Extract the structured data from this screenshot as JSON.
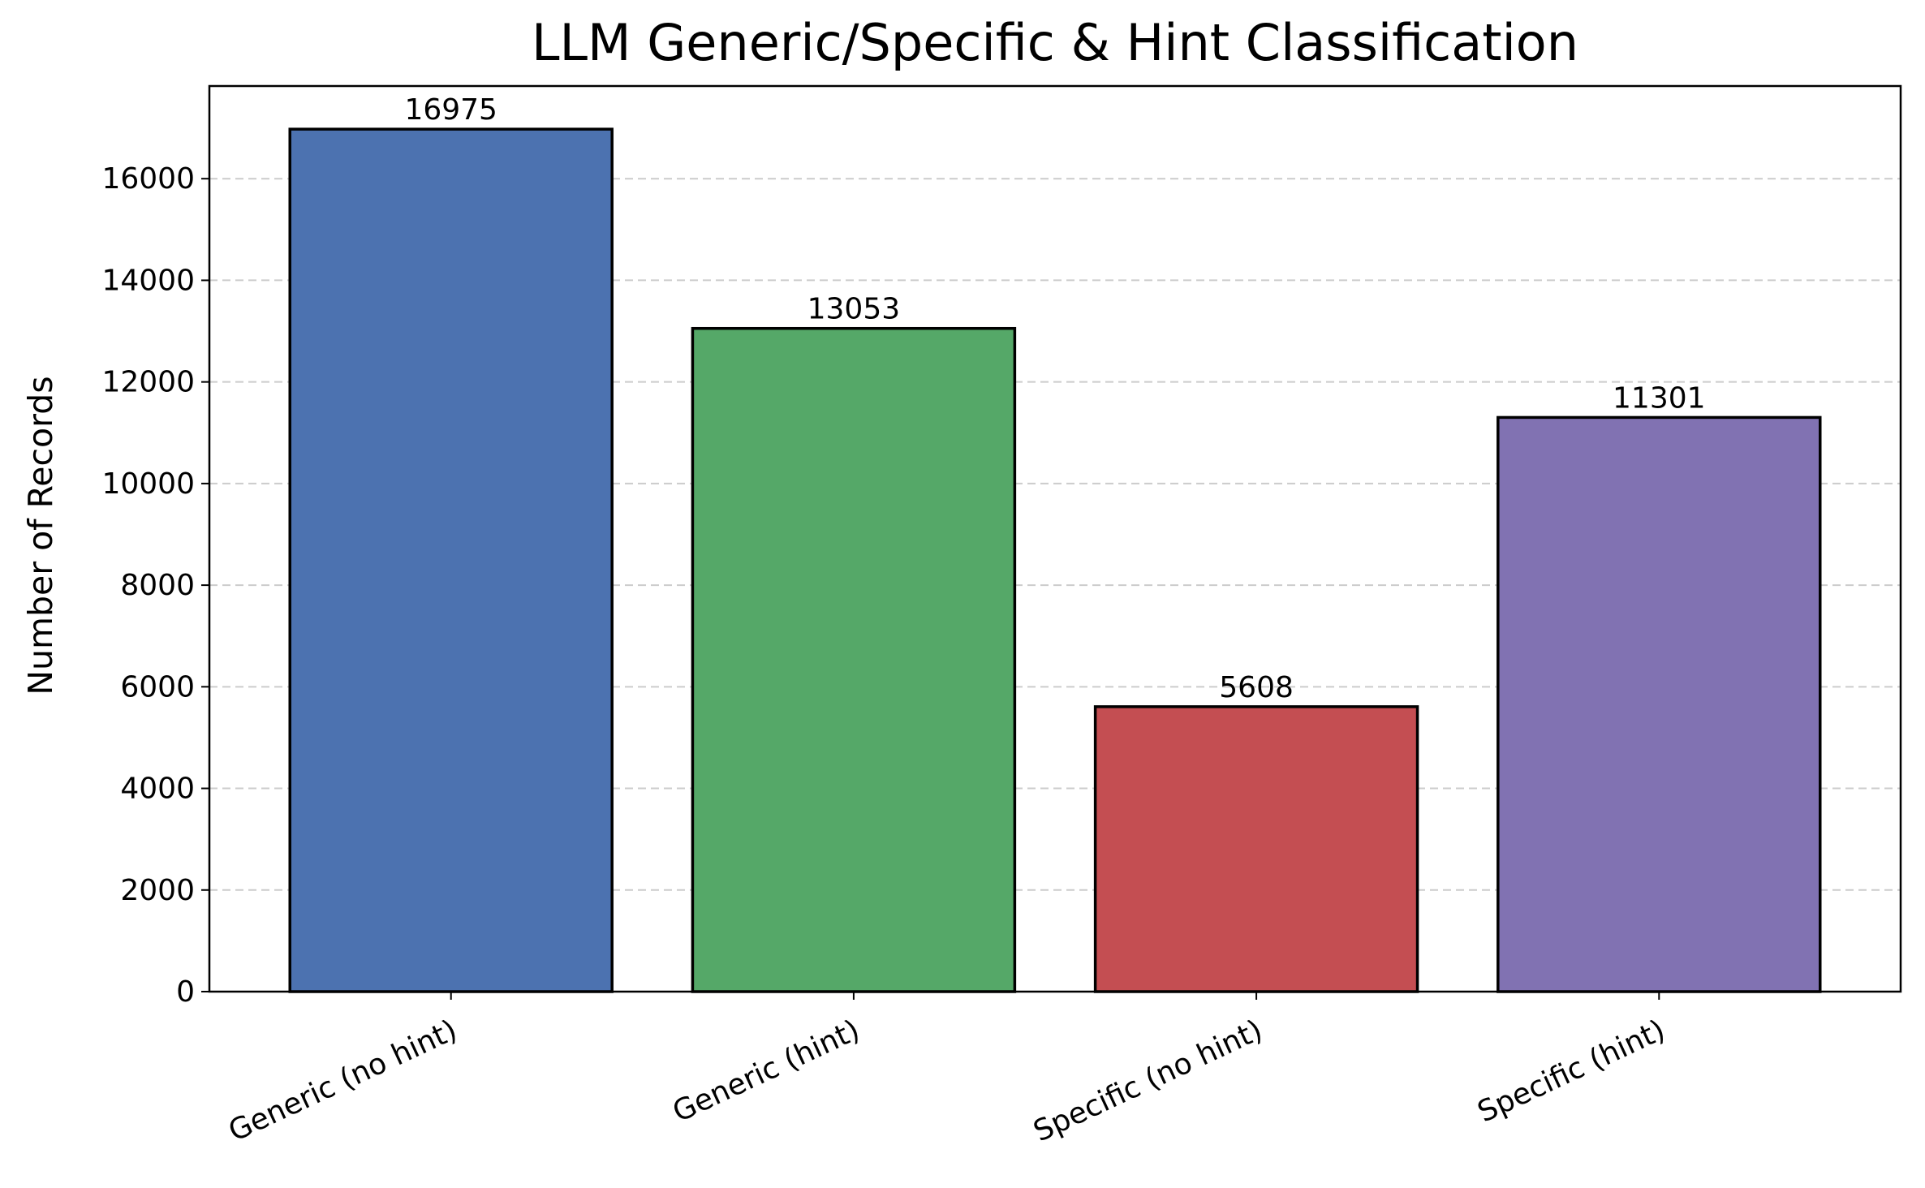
{
  "chart_data": {
    "type": "bar",
    "title": "LLM Generic/Specific & Hint Classification",
    "xlabel": "",
    "ylabel": "Number of Records",
    "categories": [
      "Generic (no hint)",
      "Generic (hint)",
      "Specific (no hint)",
      "Specific (hint)"
    ],
    "values": [
      16975,
      13053,
      5608,
      11301
    ],
    "colors": [
      "#4c72b0",
      "#55a868",
      "#c44e52",
      "#8172b2"
    ],
    "edge_color": "#000000",
    "ylim": [
      0,
      17824
    ],
    "yticks": [
      0,
      2000,
      4000,
      6000,
      8000,
      10000,
      12000,
      14000,
      16000
    ],
    "grid": {
      "axis": "y",
      "style": "dashed",
      "color": "#cccccc"
    },
    "data_labels": [
      "16975",
      "13053",
      "5608",
      "11301"
    ]
  }
}
